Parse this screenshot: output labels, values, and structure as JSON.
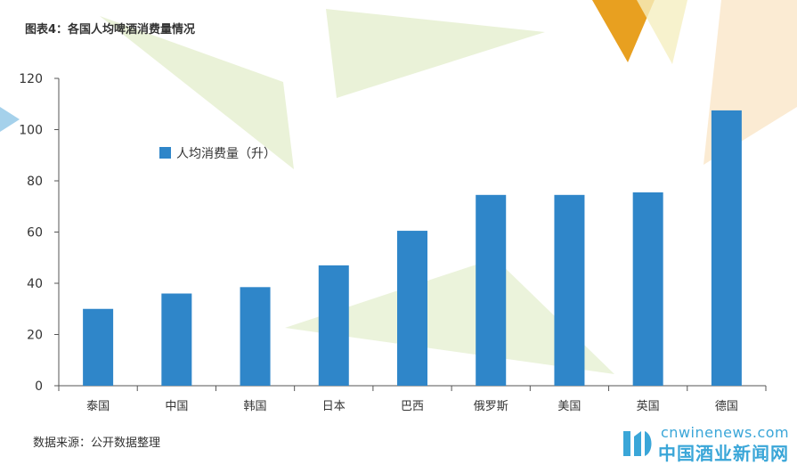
{
  "figure": {
    "title": "图表4：各国人均啤酒消费量情况",
    "source": "数据来源：公开数据整理"
  },
  "watermark": {
    "site": "cnwinenews.com",
    "name": "中国酒业新闻网"
  },
  "chart_data": {
    "type": "bar",
    "categories": [
      "泰国",
      "中国",
      "韩国",
      "日本",
      "巴西",
      "俄罗斯",
      "美国",
      "英国",
      "德国"
    ],
    "series": [
      {
        "name": "人均消费量（升）",
        "values": [
          30,
          36,
          38.5,
          47,
          60.5,
          74.5,
          74.5,
          75.5,
          107.5
        ],
        "color": "#2f86c9"
      }
    ],
    "title": "",
    "xlabel": "",
    "ylabel": "",
    "ylim": [
      0,
      120
    ],
    "yticks": [
      0,
      20,
      40,
      60,
      80,
      100,
      120
    ],
    "grid": false,
    "legend_position": "top-left"
  }
}
